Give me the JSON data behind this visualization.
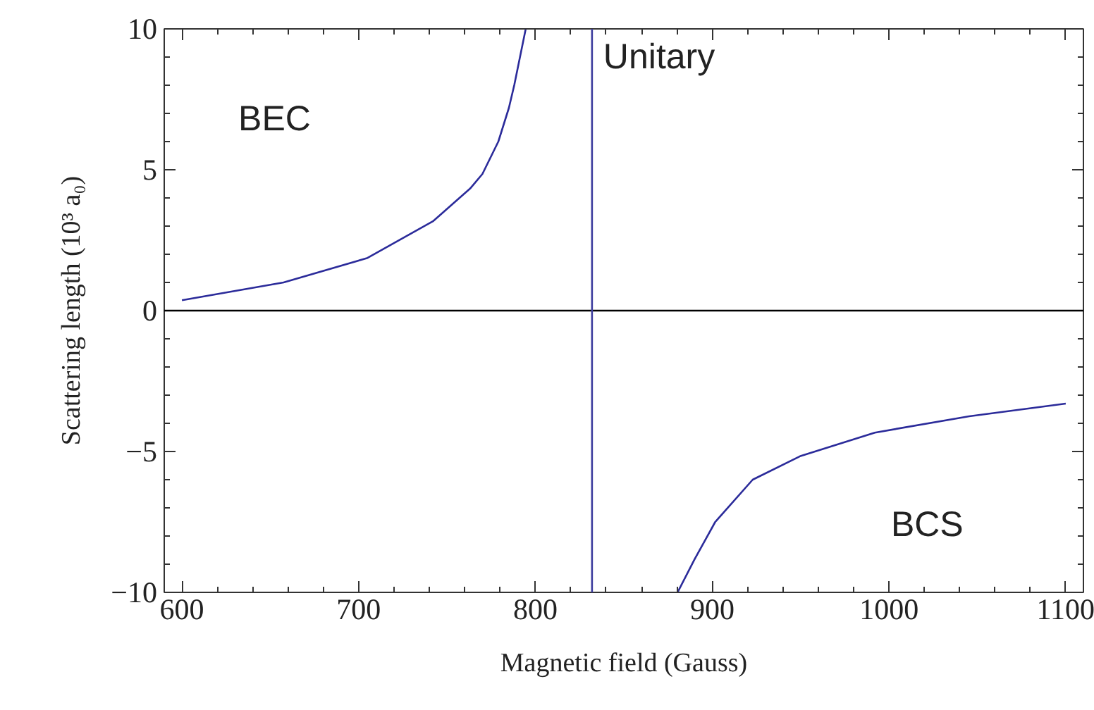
{
  "chart_data": {
    "type": "line",
    "xlabel": "Magnetic field (Gauss)",
    "ylabel": "Scattering length (10³ a₀)",
    "xlim": [
      590,
      1110
    ],
    "ylim": [
      -10,
      10
    ],
    "xticks": [
      600,
      700,
      800,
      900,
      1000,
      1100
    ],
    "yticks": [
      {
        "value": -10,
        "label": "−10"
      },
      {
        "value": -5,
        "label": "−5"
      },
      0,
      5,
      10
    ],
    "grid": false,
    "marker": "none",
    "line_style": "solid",
    "series": [
      {
        "color": "#2b2b9a",
        "x": [
          600,
          657.5,
          705,
          742,
          763,
          770,
          779,
          785,
          788,
          794.5
        ],
        "values": [
          0.37,
          1.0,
          1.87,
          3.17,
          4.33,
          4.85,
          6,
          7.2,
          8,
          10
        ]
      },
      {
        "color": "#2b2b9a",
        "x": [
          880.4,
          890,
          901.7,
          922.9,
          949.6,
          992,
          1045.4,
          1100
        ],
        "values": [
          -10,
          -8.83,
          -7.5,
          -6,
          -5.17,
          -4.33,
          -3.75,
          -3.3
        ]
      }
    ],
    "ref_lines": [
      {
        "axis": "y",
        "value": 0,
        "label": null,
        "color": "#000000"
      },
      {
        "axis": "x",
        "value": 832,
        "label": "Unitary",
        "color": "#3d3d9e"
      }
    ],
    "annotations": [
      "BEC",
      "BCS"
    ]
  }
}
